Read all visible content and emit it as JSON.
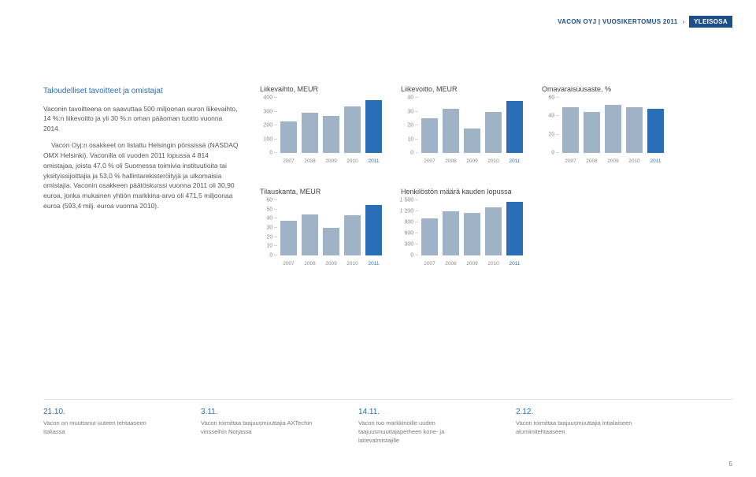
{
  "header": {
    "left": "VACON OYJ | VUOSIKERTOMUS 2011",
    "badge": "YLEISOSA"
  },
  "body": {
    "heading": "Taloudelliset tavoitteet ja omistajat",
    "p1": "Vaconin tavoitteena on saavuttaa 500 miljoonan euron liikevaihto, 14 %:n liikevoitto ja yli 30 %:n oman pääoman tuotto vuonna 2014.",
    "p2": "Vacon Oyj:n osakkeet on listattu Helsingin pörssissä (NASDAQ OMX Helsinki). Vaconilla oli vuoden 2011 lopussa 4 814 omistajaa, joista 47,0 % oli Suomessa toimivia instituutioita tai yksityissijoittajia ja 53,0 % hallintarekisteröityjä ja ulkomaisia omistajia. Vaconin osakkeen päätöskurssi vuonna 2011 oli 30,90 euroa, jonka mukainen yhtiön markkina-arvo oli 471,5 miljoonaa euroa (593,4 milj. euroa vuonna 2010)."
  },
  "charts": [
    {
      "title": "Liikevaihto, MEUR",
      "ymax": 400,
      "yticks": [
        400,
        300,
        200,
        100,
        0
      ],
      "xlabels": [
        "2007",
        "2008",
        "2009",
        "2010",
        "2011"
      ],
      "values": [
        230,
        290,
        270,
        340,
        385
      ],
      "bar_color": "#9fb2c6",
      "highlight_last_color": "#2a6fb5"
    },
    {
      "title": "Liikevoitto, MEUR",
      "ymax": 40,
      "yticks": [
        40,
        30,
        20,
        10,
        0
      ],
      "xlabels": [
        "2007",
        "2008",
        "2009",
        "2010",
        "2011"
      ],
      "values": [
        25,
        32,
        18,
        30,
        38
      ],
      "bar_color": "#9fb2c6",
      "highlight_last_color": "#2a6fb5"
    },
    {
      "title": "Omavaraisuusaste, %",
      "ymax": 60,
      "yticks": [
        60,
        40,
        20,
        0
      ],
      "xlabels": [
        "2007",
        "2008",
        "2009",
        "2010",
        "2011"
      ],
      "values": [
        50,
        45,
        52,
        50,
        48
      ],
      "bar_color": "#9fb2c6",
      "highlight_last_color": "#2a6fb5"
    },
    {
      "title": "Tilauskanta, MEUR",
      "ymax": 60,
      "yticks": [
        60,
        50,
        40,
        30,
        20,
        10,
        0
      ],
      "xlabels": [
        "2007",
        "2008",
        "2009",
        "2010",
        "2011"
      ],
      "values": [
        38,
        45,
        30,
        44,
        55
      ],
      "bar_color": "#9fb2c6",
      "highlight_last_color": "#2a6fb5"
    },
    {
      "title": "Henkilöstön määrä kauden lopussa",
      "ymax": 1500,
      "yticks": [
        1500,
        1200,
        900,
        600,
        300,
        0
      ],
      "xlabels": [
        "2007",
        "2008",
        "2009",
        "2010",
        "2011"
      ],
      "values": [
        1000,
        1200,
        1150,
        1300,
        1450
      ],
      "bar_color": "#9fb2c6",
      "highlight_last_color": "#2a6fb5"
    }
  ],
  "timeline": [
    {
      "date": "21.10.",
      "text": "Vacon on muuttanut uuteen tehtaaseen Italiassa"
    },
    {
      "date": "3.11.",
      "text": "Vacon toimittaa taajuusmuuttajia AXTechin vinsseihin Norjassa"
    },
    {
      "date": "14.11.",
      "text": "Vacon tuo markkinoille uuden taajuusmuuttajaperheen kone- ja laitevalmistajille"
    },
    {
      "date": "2.12.",
      "text": "Vacon toimittaa taajuusmuuttajia intialaiseen alumiinitehtaaseen"
    }
  ],
  "page_number": "5"
}
